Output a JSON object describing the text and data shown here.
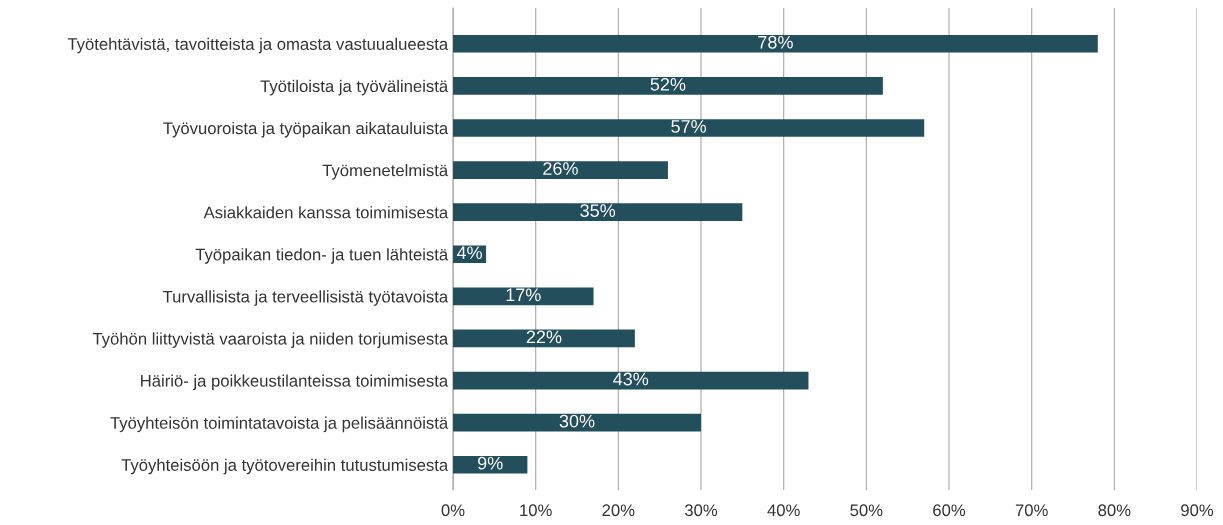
{
  "chart_data": {
    "type": "bar",
    "orientation": "horizontal",
    "categories": [
      "Työtehtävistä, tavoitteista ja omasta vastuualueesta",
      "Työtiloista ja työvälineistä",
      "Työvuoroista ja työpaikan aikatauluista",
      "Työmenetelmistä",
      "Asiakkaiden kanssa toimimisesta",
      "Työpaikan tiedon- ja tuen lähteistä",
      "Turvallisista ja terveellisistä työtavoista",
      "Työhön liittyvistä vaaroista ja niiden torjumisesta",
      "Häiriö- ja poikkeustilanteissa toimimisesta",
      "Työyhteisön toimintatavoista ja pelisäännöistä",
      "Työyhteisöön ja työtovereihin tutustumisesta"
    ],
    "values": [
      78,
      52,
      57,
      26,
      35,
      4,
      17,
      22,
      43,
      30,
      9
    ],
    "value_labels": [
      "78%",
      "52%",
      "57%",
      "26%",
      "35%",
      "4%",
      "17%",
      "22%",
      "43%",
      "30%",
      "9%"
    ],
    "color": "#234e5c",
    "xlim": [
      0,
      90
    ],
    "xticks": [
      {
        "value": 0,
        "label": "0%"
      },
      {
        "value": 10,
        "label": "10%"
      },
      {
        "value": 20,
        "label": "20%"
      },
      {
        "value": 30,
        "label": "30%"
      },
      {
        "value": 40,
        "label": "40%"
      },
      {
        "value": 50,
        "label": "50%"
      },
      {
        "value": 60,
        "label": "60%"
      },
      {
        "value": 70,
        "label": "70%"
      },
      {
        "value": 80,
        "label": "80%"
      },
      {
        "value": 90,
        "label": "90%"
      }
    ],
    "grid": "x",
    "legend": false
  }
}
